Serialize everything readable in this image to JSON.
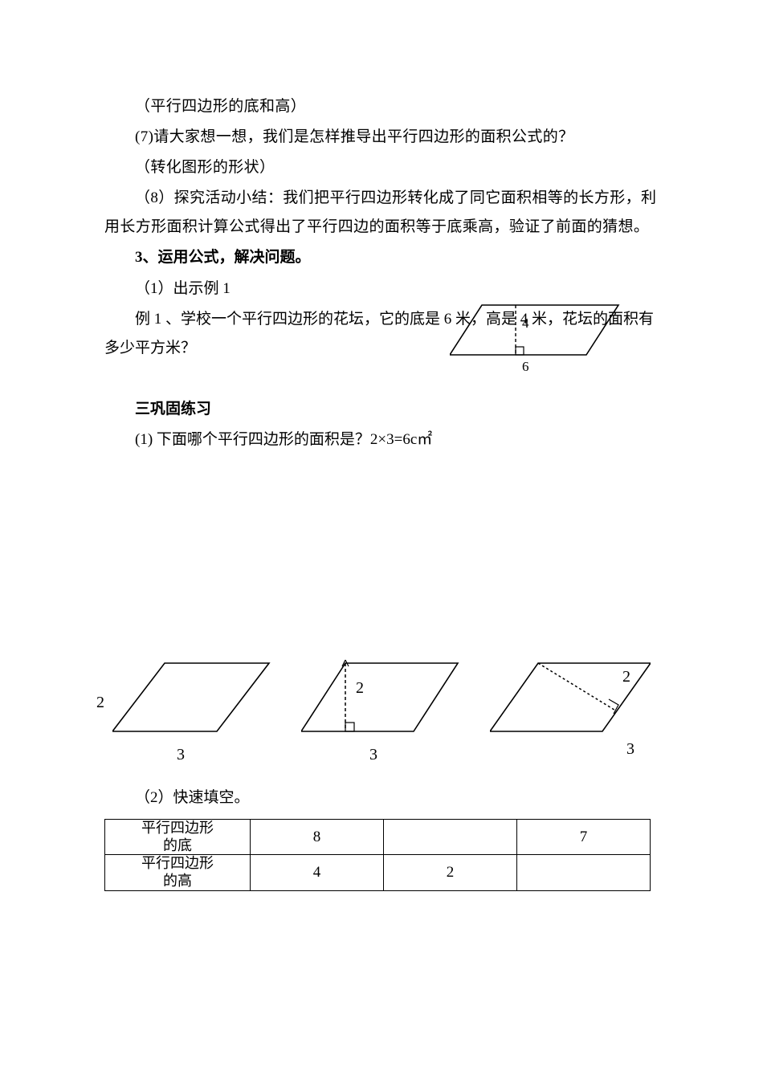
{
  "lines": {
    "l1": "（平行四边形的底和高）",
    "l2": "(7)请大家想一想，我们是怎样推导出平行四边形的面积公式的？",
    "l3": "（转化图形的形状）",
    "l4": "（8）探究活动小结：我们把平行四边形转化成了同它面积相等的长方形，利用长方形面积计算公式得出了平行四边的面积等于底乘高，验证了前面的猜想。",
    "l5": "3、运用公式，解决问题。",
    "l6": "（1）出示例 1",
    "l7": "例 1 、学校一个平行四边形的花坛，它的底是 6 米，高是 4 米，花坛的面积有多少平方米？",
    "l8": "三巩固练习",
    "l9": "(1)  下面哪个平行四边形的面积是？2×3=6c㎡",
    "l10": "（2）快速填空。"
  },
  "example_diagram": {
    "base_label": "6",
    "height_label": "4",
    "stroke": "#000000",
    "fill": "none",
    "stroke_width": 1.6,
    "dash": "4,3"
  },
  "shapes": {
    "s1": {
      "side_label": "2",
      "base_label": "3",
      "stroke": "#000000",
      "sw": 1.6
    },
    "s2": {
      "height_label": "2",
      "base_label": "3",
      "stroke": "#000000",
      "sw": 1.6,
      "dash": "4,3"
    },
    "s3": {
      "diag_label": "2",
      "base_label": "3",
      "stroke": "#000000",
      "sw": 1.6
    }
  },
  "table": {
    "header_base": "平行四边形的底",
    "header_height": "平行四边形的高",
    "row_base": [
      "8",
      "",
      "7"
    ],
    "row_height": [
      "4",
      "2",
      ""
    ]
  }
}
